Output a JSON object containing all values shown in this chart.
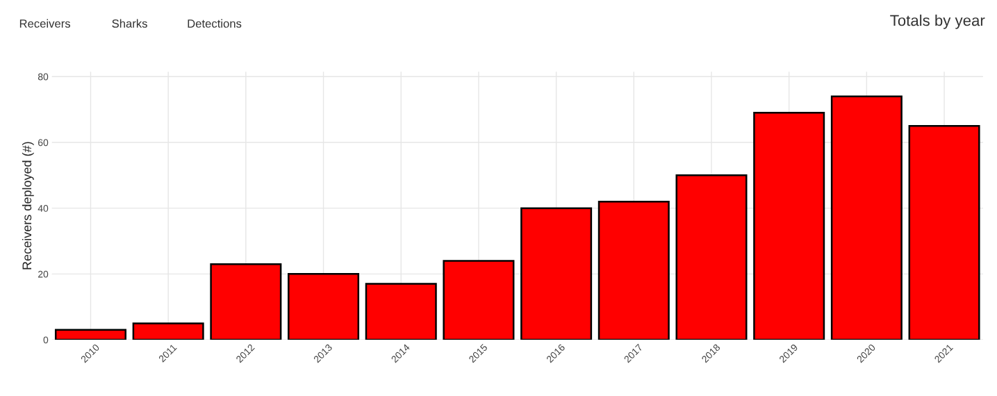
{
  "chart_data": {
    "type": "bar",
    "title": "Totals by year",
    "ylabel": "Receivers deployed (#)",
    "annotations": [
      "Receivers",
      "Sharks",
      "Detections"
    ],
    "categories": [
      "2010",
      "2011",
      "2012",
      "2013",
      "2014",
      "2015",
      "2016",
      "2017",
      "2018",
      "2019",
      "2020",
      "2021"
    ],
    "values": [
      3,
      5,
      23,
      20,
      17,
      24,
      40,
      42,
      50,
      69,
      74,
      65
    ],
    "color": "#ff0000",
    "ylim": [
      0,
      81.5
    ],
    "yticks": [
      0,
      20,
      40,
      60,
      80
    ],
    "grid": true
  }
}
